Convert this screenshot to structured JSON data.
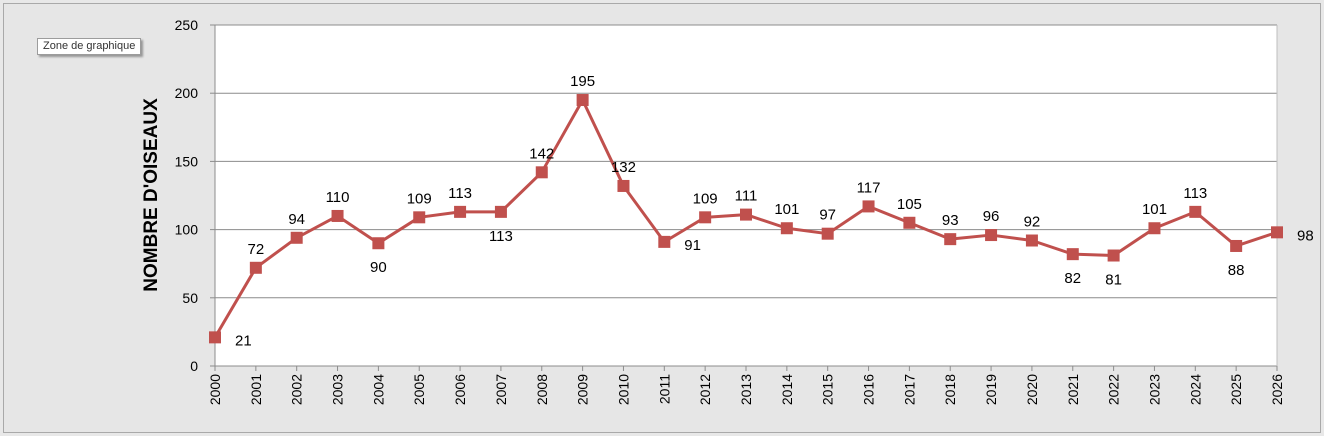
{
  "tooltip": {
    "text": "Zone de graphique"
  },
  "colors": {
    "series": "#c0504d",
    "plot_background": "#ffffff",
    "chart_background": "#e6e6e6",
    "gridline": "#8c8c8c"
  },
  "chart_data": {
    "type": "line",
    "title": "",
    "xlabel": "",
    "ylabel": "NOMBRE D'OISEAUX",
    "ylim": [
      0,
      250
    ],
    "yticks": [
      0,
      50,
      100,
      150,
      200,
      250
    ],
    "grid": true,
    "legend": "none",
    "categories": [
      "2000",
      "2001",
      "2002",
      "2003",
      "2004",
      "2005",
      "2006",
      "2007",
      "2008",
      "2009",
      "2010",
      "2011",
      "2012",
      "2013",
      "2014",
      "2015",
      "2016",
      "2017",
      "2018",
      "2019",
      "2020",
      "2021",
      "2022",
      "2023",
      "2024",
      "2025",
      "2026"
    ],
    "series": [
      {
        "marker": "square",
        "color": "#c0504d",
        "values": [
          21,
          72,
          94,
          110,
          90,
          109,
          113,
          113,
          142,
          195,
          132,
          91,
          109,
          111,
          101,
          97,
          117,
          105,
          93,
          96,
          92,
          82,
          81,
          101,
          113,
          88,
          98
        ]
      }
    ],
    "data_label_positions": [
      "right",
      "above",
      "above",
      "above",
      "below",
      "above",
      "above",
      "below",
      "above",
      "above",
      "above",
      "right",
      "above",
      "above",
      "above",
      "above",
      "above",
      "above",
      "above",
      "above",
      "above",
      "below",
      "below",
      "above",
      "above",
      "below",
      "right"
    ]
  }
}
